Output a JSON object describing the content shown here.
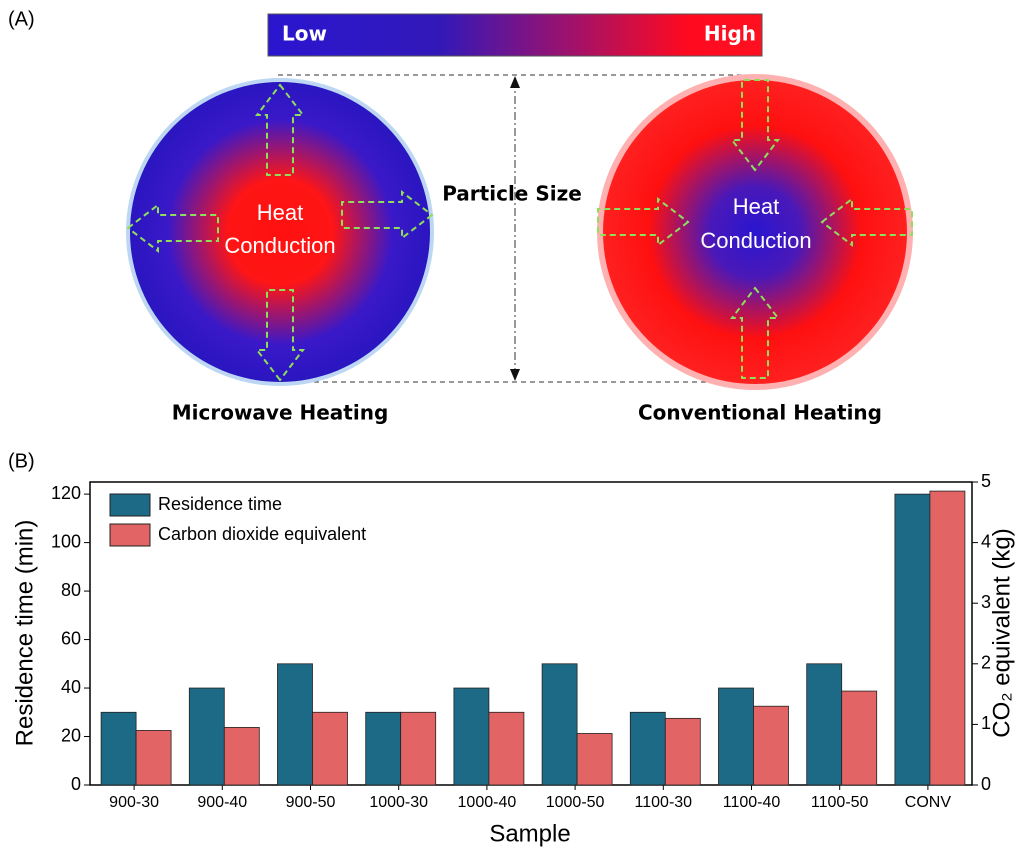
{
  "diagram": {
    "panel_label": "(A)",
    "scale_low": "Low",
    "scale_high": "High",
    "center_label": "Particle Size",
    "left_circle": {
      "lines": [
        "Heat",
        "Conduction"
      ],
      "caption": "Microwave Heating"
    },
    "right_circle": {
      "lines": [
        "Heat",
        "Conduction"
      ],
      "caption": "Conventional Heating"
    }
  },
  "chart_data": {
    "type": "bar",
    "panel_label": "(B)",
    "x_label": "Sample",
    "y_label": "Residence time (min)",
    "y2_label": "CO₂ equivalent (kg)",
    "categories": [
      "900-30",
      "900-40",
      "900-50",
      "1000-30",
      "1000-40",
      "1000-50",
      "1100-30",
      "1100-40",
      "1100-50",
      "CONV"
    ],
    "series": [
      {
        "name": "Residence time",
        "color": "#1d6a86",
        "values": [
          30,
          40,
          50,
          30,
          40,
          50,
          30,
          40,
          50,
          120
        ]
      },
      {
        "name": "Carbon dioxide equivalent",
        "color": "#e36464",
        "axis": "y2",
        "values": [
          0.9,
          0.95,
          1.2,
          1.2,
          1.2,
          0.85,
          1.1,
          1.3,
          1.55,
          4.85
        ]
      }
    ],
    "ylim": [
      0,
      125
    ],
    "yticks": [
      0,
      20,
      40,
      60,
      80,
      100,
      120
    ],
    "y2lim": [
      0,
      5
    ],
    "y2ticks": [
      0,
      1,
      2,
      3,
      4,
      5
    ],
    "legend": "upper left"
  }
}
